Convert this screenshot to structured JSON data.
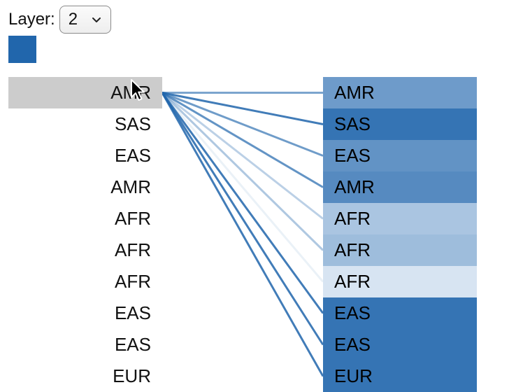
{
  "controls": {
    "layer_label": "Layer:",
    "layer_value": "2"
  },
  "colors": {
    "swatch": "#2166ac",
    "selected_bg": "#cccccc",
    "edge": "#2166ac"
  },
  "selected_index": 0,
  "left_tokens": [
    "AMR",
    "SAS",
    "EAS",
    "AMR",
    "AFR",
    "AFR",
    "AFR",
    "EAS",
    "EAS",
    "EUR"
  ],
  "right_tokens": [
    {
      "label": "AMR",
      "weight": 0.62
    },
    {
      "label": "SAS",
      "weight": 0.9
    },
    {
      "label": "EAS",
      "weight": 0.68
    },
    {
      "label": "AMR",
      "weight": 0.74
    },
    {
      "label": "AFR",
      "weight": 0.32
    },
    {
      "label": "AFR",
      "weight": 0.38
    },
    {
      "label": "AFR",
      "weight": 0.1
    },
    {
      "label": "EAS",
      "weight": 0.9
    },
    {
      "label": "EAS",
      "weight": 0.9
    },
    {
      "label": "EUR",
      "weight": 0.9
    }
  ]
}
